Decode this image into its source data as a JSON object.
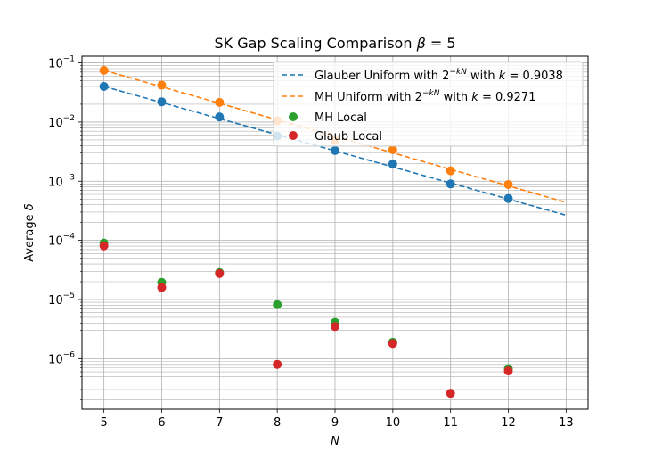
{
  "chart_data": {
    "type": "scatter",
    "title": "SK Gap Scaling Comparison β = 5",
    "title_main": "SK Gap Scaling Comparison",
    "title_math_symbol": "β",
    "title_math_rest": " = 5",
    "xlabel": "N",
    "ylabel": "Average δ",
    "ylabel_main": "Average",
    "ylabel_symbol": "δ",
    "xlim": [
      4.62,
      13.38
    ],
    "ylim": [
      1.4e-07,
      0.13
    ],
    "yscale": "log",
    "grid": true,
    "legend_position": "top-right",
    "x_ticks": [
      5,
      6,
      7,
      8,
      9,
      10,
      11,
      12,
      13
    ],
    "y_ticks": [
      {
        "value": 1e-06,
        "base": "10",
        "exp": "−6"
      },
      {
        "value": 1e-05,
        "base": "10",
        "exp": "−5"
      },
      {
        "value": 0.0001,
        "base": "10",
        "exp": "−4"
      },
      {
        "value": 0.001,
        "base": "10",
        "exp": "−3"
      },
      {
        "value": 0.01,
        "base": "10",
        "exp": "−2"
      },
      {
        "value": 0.1,
        "base": "10",
        "exp": "−1"
      }
    ],
    "series": [
      {
        "name": "Glauber Uniform",
        "kind": "scatter",
        "color": "#1f77b4",
        "x": [
          5,
          6,
          7,
          8,
          9,
          10,
          11,
          12
        ],
        "y": [
          0.04,
          0.022,
          0.0122,
          0.0058,
          0.0033,
          0.00195,
          0.0009,
          0.00051
        ]
      },
      {
        "name": "MH Uniform",
        "kind": "scatter",
        "color": "#ff7f0e",
        "x": [
          5,
          6,
          7,
          8,
          9,
          10,
          11,
          12
        ],
        "y": [
          0.075,
          0.042,
          0.0215,
          0.0105,
          0.0049,
          0.0034,
          0.0015,
          0.00088
        ]
      },
      {
        "name": "MH Local",
        "kind": "scatter",
        "color": "#2ca02c",
        "x": [
          5,
          6,
          7,
          8,
          9,
          10,
          12
        ],
        "y": [
          9e-05,
          1.95e-05,
          2.85e-05,
          8.2e-06,
          4.1e-06,
          1.9e-06,
          6.8e-07
        ]
      },
      {
        "name": "Glaub Local",
        "kind": "scatter",
        "color": "#d62728",
        "x": [
          5,
          6,
          7,
          8,
          9,
          10,
          11,
          12
        ],
        "y": [
          8.1e-05,
          1.6e-05,
          2.75e-05,
          8e-07,
          3.5e-06,
          1.8e-06,
          2.6e-07,
          6.2e-07
        ]
      },
      {
        "name": "Glauber Uniform with 2^{-kN} with k = 0.9038",
        "kind": "fit-line",
        "color": "#1f77b4",
        "k": 0.9038,
        "x": [
          5,
          13
        ],
        "y": [
          0.04,
          0.000266
        ]
      },
      {
        "name": "MH Uniform with 2^{-kN} with k = 0.9271",
        "kind": "fit-line",
        "color": "#ff7f0e",
        "k": 0.9271,
        "x": [
          5,
          13
        ],
        "y": [
          0.075,
          0.000439
        ]
      }
    ],
    "legend": [
      {
        "kind": "dashed",
        "color": "#1f77b4",
        "pre": "Glauber Uniform with ",
        "base": "2",
        "exp": "−kN",
        "mid": " with ",
        "var": "k",
        "eq": " = 0.9038"
      },
      {
        "kind": "dashed",
        "color": "#ff7f0e",
        "pre": "MH Uniform with ",
        "base": "2",
        "exp": "−kN",
        "mid": " with ",
        "var": "k",
        "eq": " = 0.9271"
      },
      {
        "kind": "marker",
        "color": "#2ca02c",
        "label": "MH Local"
      },
      {
        "kind": "marker",
        "color": "#d62728",
        "label": "Glaub Local"
      }
    ]
  }
}
